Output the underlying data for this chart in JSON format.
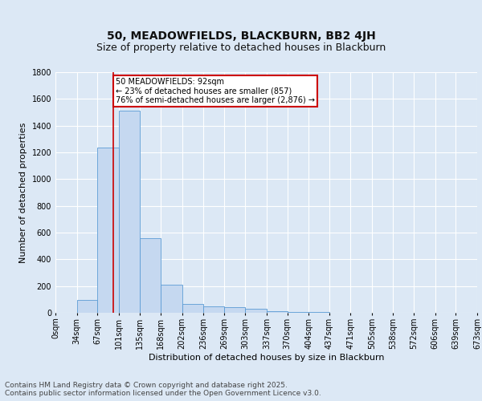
{
  "title": "50, MEADOWFIELDS, BLACKBURN, BB2 4JH",
  "subtitle": "Size of property relative to detached houses in Blackburn",
  "xlabel": "Distribution of detached houses by size in Blackburn",
  "ylabel": "Number of detached properties",
  "bin_labels": [
    "0sqm",
    "34sqm",
    "67sqm",
    "101sqm",
    "135sqm",
    "168sqm",
    "202sqm",
    "236sqm",
    "269sqm",
    "303sqm",
    "337sqm",
    "370sqm",
    "404sqm",
    "437sqm",
    "471sqm",
    "505sqm",
    "538sqm",
    "572sqm",
    "606sqm",
    "639sqm",
    "673sqm"
  ],
  "bin_edges": [
    0,
    34,
    67,
    101,
    135,
    168,
    202,
    236,
    269,
    303,
    337,
    370,
    404,
    437,
    471,
    505,
    538,
    572,
    606,
    639,
    673
  ],
  "bar_heights": [
    0,
    95,
    1235,
    1510,
    560,
    210,
    65,
    50,
    40,
    30,
    10,
    5,
    5,
    2,
    2,
    2,
    1,
    0,
    0,
    0
  ],
  "bar_color": "#c5d8f0",
  "bar_edge_color": "#5b9bd5",
  "property_size": 92,
  "vline_color": "#cc0000",
  "annotation_line1": "50 MEADOWFIELDS: 92sqm",
  "annotation_line2": "← 23% of detached houses are smaller (857)",
  "annotation_line3": "76% of semi-detached houses are larger (2,876) →",
  "annotation_box_color": "#cc0000",
  "ylim": [
    0,
    1800
  ],
  "yticks": [
    0,
    200,
    400,
    600,
    800,
    1000,
    1200,
    1400,
    1600,
    1800
  ],
  "background_color": "#dce8f5",
  "plot_bg_color": "#dce8f5",
  "grid_color": "#ffffff",
  "footer_line1": "Contains HM Land Registry data © Crown copyright and database right 2025.",
  "footer_line2": "Contains public sector information licensed under the Open Government Licence v3.0.",
  "title_fontsize": 10,
  "subtitle_fontsize": 9,
  "label_fontsize": 8,
  "tick_fontsize": 7,
  "footer_fontsize": 6.5
}
